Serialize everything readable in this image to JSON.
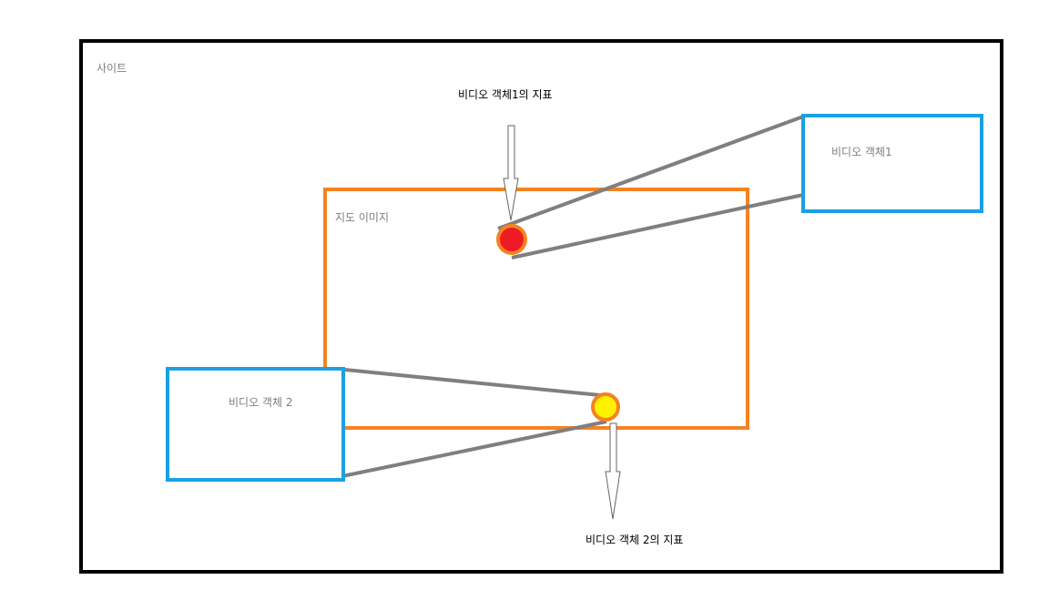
{
  "site_label": "사이트",
  "map_label": "지도 이미지",
  "video1": {
    "box_label": "비디오 객체1",
    "marker_label": "비디오 객체1의 지표",
    "marker_color": "#ed1c24"
  },
  "video2": {
    "box_label": "비디오 객체 2",
    "marker_label": "비디오 객체 2의 지표",
    "marker_color": "#fff200"
  },
  "colors": {
    "site_border": "#000000",
    "map_border": "#f58220",
    "video_border": "#1ba1e2",
    "connector": "#7f7f7f",
    "marker_ring": "#f58220",
    "arrow_stroke": "#666666"
  }
}
